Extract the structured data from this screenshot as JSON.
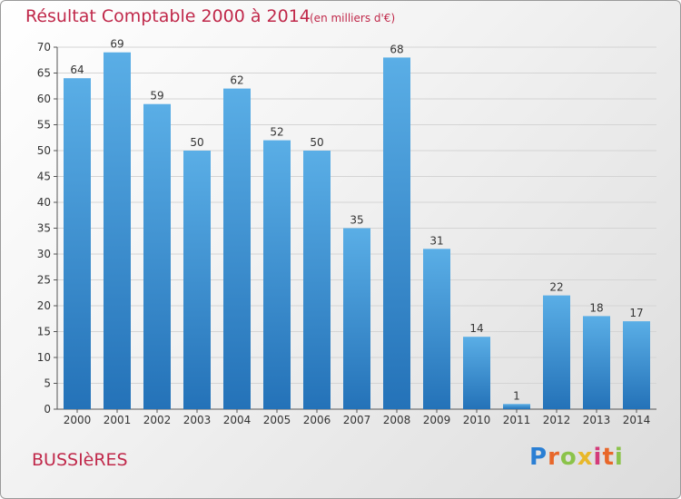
{
  "header": {
    "title": "Résultat Comptable 2000 à 2014",
    "unit": "(en milliers d'€)"
  },
  "footer": {
    "commune": "BUSSIèRES",
    "logo_letters": [
      "P",
      "r",
      "o",
      "x",
      "i",
      "t",
      "i"
    ]
  },
  "colors": {
    "title": "#c0284a",
    "bar_top": "#5aaee6",
    "bar_bottom": "#2472b8"
  },
  "chart_data": {
    "type": "bar",
    "categories": [
      "2000",
      "2001",
      "2002",
      "2003",
      "2004",
      "2005",
      "2006",
      "2007",
      "2008",
      "2009",
      "2010",
      "2011",
      "2012",
      "2013",
      "2014"
    ],
    "values": [
      64,
      69,
      59,
      50,
      62,
      52,
      50,
      35,
      68,
      31,
      14,
      1,
      22,
      18,
      17
    ],
    "ylim": [
      0,
      70
    ],
    "yticks": [
      0,
      5,
      10,
      15,
      20,
      25,
      30,
      35,
      40,
      45,
      50,
      55,
      60,
      65,
      70
    ],
    "grid": true
  }
}
